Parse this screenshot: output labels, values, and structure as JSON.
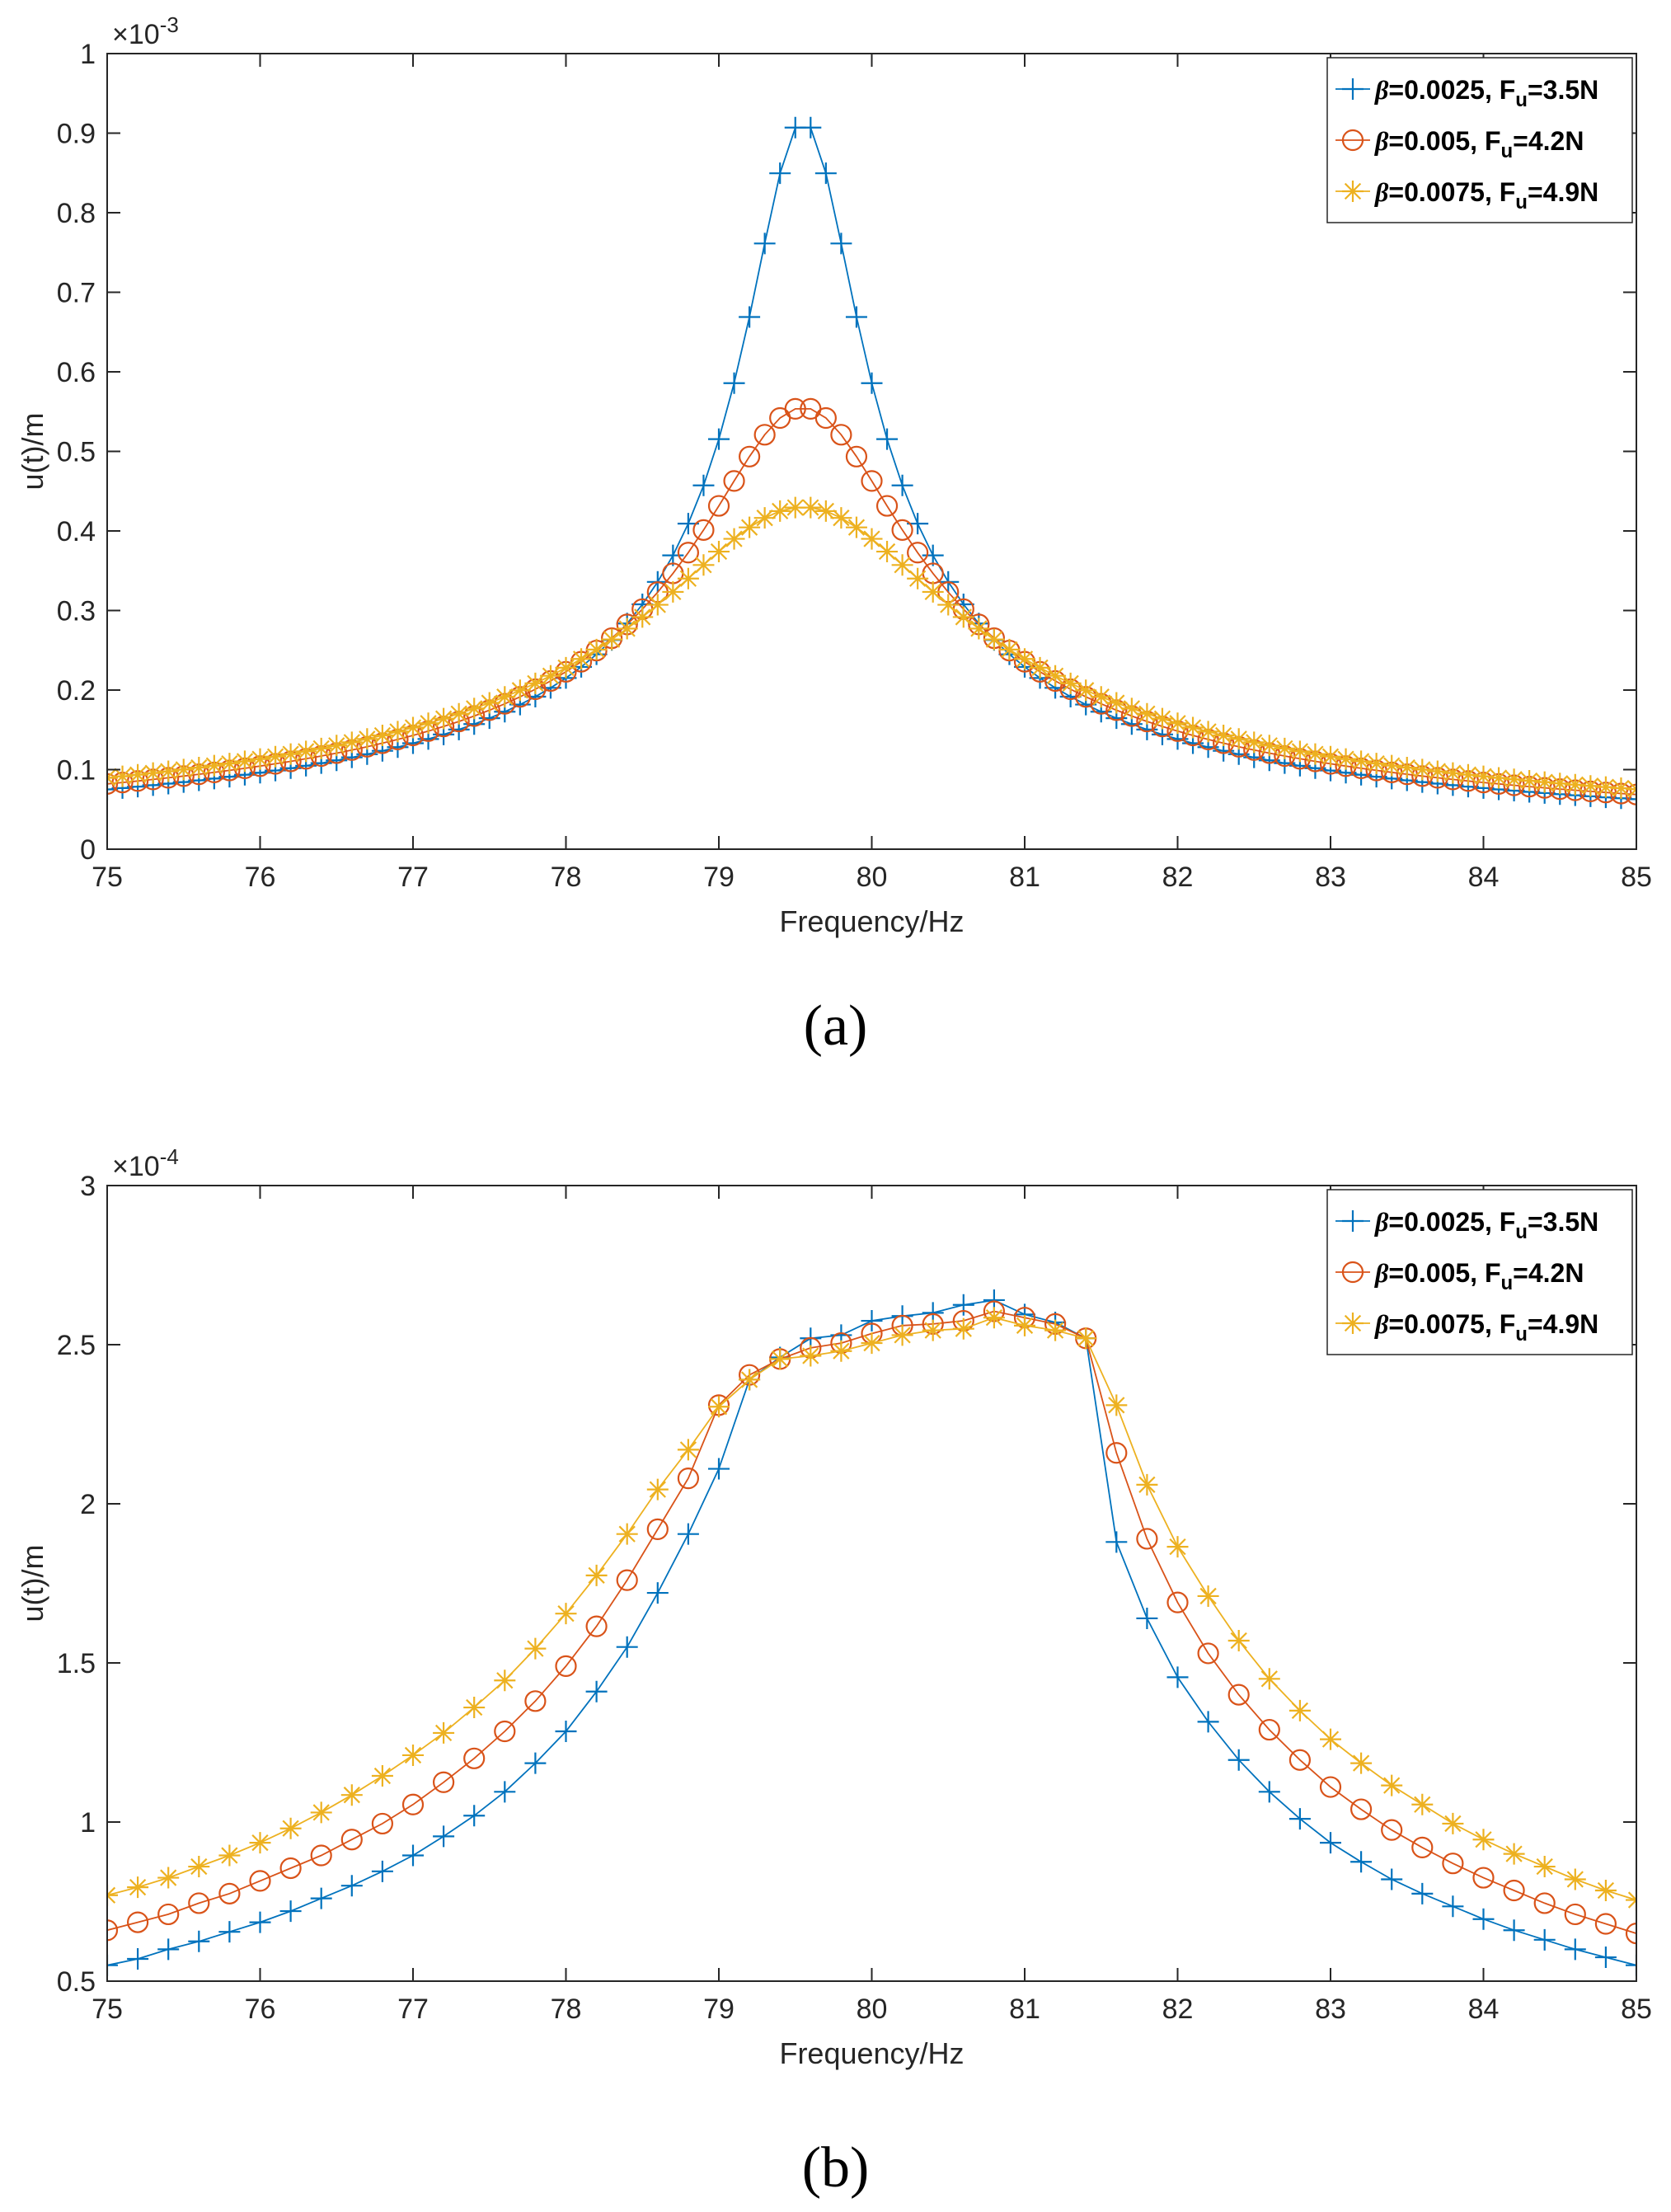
{
  "chart_data": [
    {
      "type": "line",
      "panel_label": "(a)",
      "xlabel": "Frequency/Hz",
      "ylabel": "u(t)/m",
      "exponent_label": "×10",
      "exponent_power": "-3",
      "xlim": [
        75,
        85
      ],
      "ylim": [
        0,
        1
      ],
      "xticks": [
        "75",
        "76",
        "77",
        "78",
        "79",
        "80",
        "81",
        "82",
        "83",
        "84",
        "85"
      ],
      "yticks": [
        "0",
        "0.1",
        "0.2",
        "0.3",
        "0.4",
        "0.5",
        "0.6",
        "0.7",
        "0.8",
        "0.9",
        "1"
      ],
      "grid": false,
      "legend_position": "top-right",
      "series": [
        {
          "name": "β=0.0025, Fu=3.5N",
          "legend_beta": "β",
          "legend_pre": "=0.0025, F",
          "legend_sub": "u",
          "legend_post": "=3.5N",
          "color": "#0072BD",
          "marker": "plus",
          "model": {
            "kind": "resonance",
            "f0": 79.55,
            "peak": 0.915,
            "half_width": 0.375,
            "start": 75,
            "step": 0.1,
            "count": 101
          }
        },
        {
          "name": "β=0.005, Fu=4.2N",
          "legend_beta": "β",
          "legend_pre": "=0.005, F",
          "legend_sub": "u",
          "legend_post": "=4.2N",
          "color": "#D95319",
          "marker": "circle",
          "model": {
            "kind": "resonance",
            "f0": 79.55,
            "peak": 0.555,
            "half_width": 0.68,
            "start": 75,
            "step": 0.1,
            "count": 101
          }
        },
        {
          "name": "β=0.0075, Fu=4.9N",
          "legend_beta": "β",
          "legend_pre": "=0.0075, F",
          "legend_sub": "u",
          "legend_post": "=4.9N",
          "color": "#EDB120",
          "marker": "asterisk",
          "model": {
            "kind": "resonance",
            "f0": 79.55,
            "peak": 0.43,
            "half_width": 0.97,
            "start": 75,
            "step": 0.1,
            "count": 101
          }
        }
      ]
    },
    {
      "type": "line",
      "panel_label": "(b)",
      "xlabel": "Frequency/Hz",
      "ylabel": "u(t)/m",
      "exponent_label": "×10",
      "exponent_power": "-4",
      "xlim": [
        75,
        85
      ],
      "ylim": [
        0.5,
        3
      ],
      "xticks": [
        "75",
        "76",
        "77",
        "78",
        "79",
        "80",
        "81",
        "82",
        "83",
        "84",
        "85"
      ],
      "yticks": [
        "0.5",
        "1",
        "1.5",
        "2",
        "2.5",
        "3"
      ],
      "grid": false,
      "legend_position": "top-right",
      "series": [
        {
          "name": "β=0.0025, Fu=3.5N",
          "legend_beta": "β",
          "legend_pre": "=0.0025, F",
          "legend_sub": "u",
          "legend_post": "=3.5N",
          "color": "#0072BD",
          "marker": "plus",
          "points": {
            "x": [
              75,
              75.2,
              75.4,
              75.6,
              75.8,
              76,
              76.2,
              76.4,
              76.6,
              76.8,
              77,
              77.2,
              77.4,
              77.6,
              77.8,
              78,
              78.2,
              78.4,
              78.6,
              78.8,
              79,
              79.2,
              79.4,
              79.6,
              79.8,
              80,
              80.2,
              80.4,
              80.6,
              80.8,
              81,
              81.2,
              81.4,
              81.6,
              81.8,
              82,
              82.2,
              82.4,
              82.6,
              82.8,
              83,
              83.2,
              83.4,
              83.6,
              83.8,
              84,
              84.2,
              84.4,
              84.6,
              84.8,
              85
            ],
            "y": [
              0.55,
              0.57,
              0.6,
              0.625,
              0.655,
              0.685,
              0.72,
              0.76,
              0.8,
              0.845,
              0.895,
              0.955,
              1.02,
              1.095,
              1.185,
              1.285,
              1.41,
              1.55,
              1.72,
              1.905,
              2.11,
              2.39,
              2.46,
              2.52,
              2.53,
              2.575,
              2.59,
              2.6,
              2.625,
              2.64,
              2.595,
              2.57,
              2.52,
              1.88,
              1.64,
              1.455,
              1.315,
              1.195,
              1.095,
              1.01,
              0.935,
              0.875,
              0.82,
              0.775,
              0.735,
              0.695,
              0.66,
              0.63,
              0.6,
              0.575,
              0.55
            ]
          }
        },
        {
          "name": "β=0.005, Fu=4.2N",
          "legend_beta": "β",
          "legend_pre": "=0.005, F",
          "legend_sub": "u",
          "legend_post": "=4.2N",
          "color": "#D95319",
          "marker": "circle",
          "points": {
            "x": [
              75,
              75.2,
              75.4,
              75.6,
              75.8,
              76,
              76.2,
              76.4,
              76.6,
              76.8,
              77,
              77.2,
              77.4,
              77.6,
              77.8,
              78,
              78.2,
              78.4,
              78.6,
              78.8,
              79,
              79.2,
              79.4,
              79.6,
              79.8,
              80,
              80.2,
              80.4,
              80.6,
              80.8,
              81,
              81.2,
              81.4,
              81.6,
              81.8,
              82,
              82.2,
              82.4,
              82.6,
              82.8,
              83,
              83.2,
              83.4,
              83.6,
              83.8,
              84,
              84.2,
              84.4,
              84.6,
              84.8,
              85
            ],
            "y": [
              0.66,
              0.685,
              0.71,
              0.745,
              0.775,
              0.815,
              0.855,
              0.895,
              0.945,
              0.995,
              1.055,
              1.125,
              1.2,
              1.285,
              1.38,
              1.49,
              1.615,
              1.76,
              1.92,
              2.08,
              2.31,
              2.405,
              2.455,
              2.49,
              2.505,
              2.535,
              2.56,
              2.565,
              2.575,
              2.605,
              2.585,
              2.565,
              2.52,
              2.16,
              1.89,
              1.69,
              1.53,
              1.4,
              1.29,
              1.195,
              1.11,
              1.04,
              0.975,
              0.92,
              0.87,
              0.825,
              0.785,
              0.745,
              0.71,
              0.68,
              0.65
            ]
          }
        },
        {
          "name": "β=0.0075, Fu=4.9N",
          "legend_beta": "β",
          "legend_pre": "=0.0075, F",
          "legend_sub": "u",
          "legend_post": "=4.9N",
          "color": "#EDB120",
          "marker": "asterisk",
          "points": {
            "x": [
              75,
              75.2,
              75.4,
              75.6,
              75.8,
              76,
              76.2,
              76.4,
              76.6,
              76.8,
              77,
              77.2,
              77.4,
              77.6,
              77.8,
              78,
              78.2,
              78.4,
              78.6,
              78.8,
              79,
              79.2,
              79.4,
              79.6,
              79.8,
              80,
              80.2,
              80.4,
              80.6,
              80.8,
              81,
              81.2,
              81.4,
              81.6,
              81.8,
              82,
              82.2,
              82.4,
              82.6,
              82.8,
              83,
              83.2,
              83.4,
              83.6,
              83.8,
              84,
              84.2,
              84.4,
              84.6,
              84.8,
              85
            ],
            "y": [
              0.77,
              0.795,
              0.825,
              0.86,
              0.895,
              0.935,
              0.98,
              1.03,
              1.085,
              1.145,
              1.21,
              1.28,
              1.36,
              1.445,
              1.545,
              1.655,
              1.775,
              1.905,
              2.045,
              2.17,
              2.305,
              2.39,
              2.455,
              2.465,
              2.48,
              2.505,
              2.53,
              2.545,
              2.55,
              2.585,
              2.56,
              2.545,
              2.52,
              2.31,
              2.06,
              1.865,
              1.71,
              1.57,
              1.45,
              1.35,
              1.26,
              1.185,
              1.115,
              1.055,
              0.995,
              0.945,
              0.9,
              0.86,
              0.82,
              0.785,
              0.755
            ]
          }
        }
      ]
    }
  ]
}
